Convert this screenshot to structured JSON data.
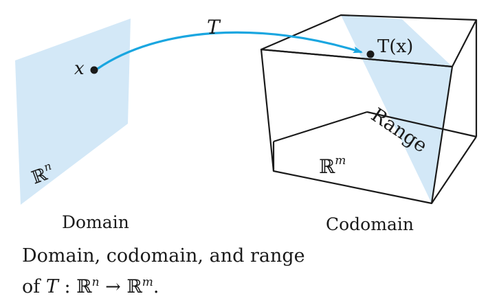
{
  "labels": {
    "map": "T",
    "point_x": "x",
    "point_tx": "T(x)",
    "domain_space": "ℝ",
    "domain_exp": "n",
    "codomain_space": "ℝ",
    "codomain_exp": "m",
    "range": "Range",
    "domain": "Domain",
    "codomain": "Codomain"
  },
  "caption": {
    "line1": "Domain, codomain, and range",
    "line2_prefix": "of ",
    "line2_T": "T",
    "line2_colon": " : ",
    "line2_R1": "ℝ",
    "line2_n": "n",
    "line2_arrow": " → ",
    "line2_R2": "ℝ",
    "line2_m": "m",
    "line2_end": "."
  },
  "colors": {
    "plane_fill": "#d3e8f7",
    "arrow": "#1aa6e0",
    "ink": "#1a1a1a"
  }
}
